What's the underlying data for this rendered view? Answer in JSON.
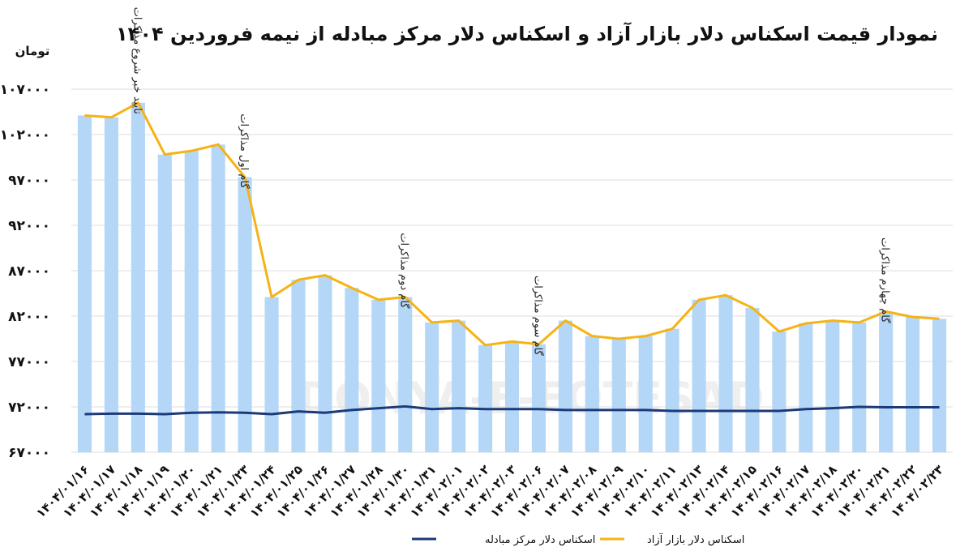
{
  "chart_data": {
    "type": "bar+line",
    "title": "نمودار قیمت اسکناس دلار بازار آزاد و اسکناس دلار مرکز مبادله از نیمه فروردین ۱۴۰۴",
    "unit_label": "تومان",
    "ylim": [
      67000,
      107000
    ],
    "yticks": [
      "۶۷۰۰۰",
      "۷۲۰۰۰",
      "۷۷۰۰۰",
      "۸۲۰۰۰",
      "۸۷۰۰۰",
      "۹۲۰۰۰",
      "۹۷۰۰۰",
      "۱۰۲۰۰۰",
      "۱۰۷۰۰۰"
    ],
    "categories": [
      "۱۴۰۴/۰۱/۱۶",
      "۱۴۰۴/۰۱/۱۷",
      "۱۴۰۴/۰۱/۱۸",
      "۱۴۰۴/۰۱/۱۹",
      "۱۴۰۴/۰۱/۲۰",
      "۱۴۰۴/۰۱/۲۱",
      "۱۴۰۴/۰۱/۲۳",
      "۱۴۰۴/۰۱/۲۴",
      "۱۴۰۴/۰۱/۲۵",
      "۱۴۰۴/۰۱/۲۶",
      "۱۴۰۴/۰۱/۲۷",
      "۱۴۰۴/۰۱/۲۸",
      "۱۴۰۴/۰۱/۳۰",
      "۱۴۰۴/۰۱/۳۱",
      "۱۴۰۴/۰۲/۰۱",
      "۱۴۰۴/۰۲/۰۲",
      "۱۴۰۴/۰۲/۰۳",
      "۱۴۰۴/۰۲/۰۶",
      "۱۴۰۴/۰۲/۰۷",
      "۱۴۰۴/۰۲/۰۸",
      "۱۴۰۴/۰۲/۰۹",
      "۱۴۰۴/۰۲/۱۰",
      "۱۴۰۴/۰۲/۱۱",
      "۱۴۰۴/۰۲/۱۳",
      "۱۴۰۴/۰۲/۱۴",
      "۱۴۰۴/۰۲/۱۵",
      "۱۴۰۴/۰۲/۱۶",
      "۱۴۰۴/۰۲/۱۷",
      "۱۴۰۴/۰۲/۱۸",
      "۱۴۰۴/۰۲/۲۰",
      "۱۴۰۴/۰۲/۲۱",
      "۱۴۰۴/۰۲/۲۲",
      "۱۴۰۴/۰۲/۲۳"
    ],
    "bars": {
      "values": [
        104100,
        103900,
        105500,
        99800,
        100200,
        100900,
        97300,
        84100,
        86000,
        86500,
        85100,
        83800,
        84100,
        81300,
        81500,
        78800,
        79200,
        78900,
        81500,
        79800,
        79500,
        79800,
        80600,
        83800,
        84300,
        82900,
        80300,
        81200,
        81500,
        81300,
        82500,
        81900,
        81700
      ],
      "color": "#b5d7f7"
    },
    "series": [
      {
        "name": "اسکناس دلار بازار آزاد",
        "color": "#f5b315",
        "values": [
          104100,
          103900,
          105500,
          99800,
          100200,
          100900,
          97300,
          84100,
          86000,
          86500,
          85100,
          83800,
          84100,
          81300,
          81500,
          78800,
          79200,
          78900,
          81500,
          79800,
          79500,
          79800,
          80600,
          83800,
          84300,
          82900,
          80300,
          81200,
          81500,
          81300,
          82500,
          81900,
          81700
        ]
      },
      {
        "name": "اسکناس دلار مرکز مبادله",
        "color": "#1c3a78",
        "values": [
          71200,
          71250,
          71250,
          71200,
          71350,
          71400,
          71350,
          71200,
          71500,
          71350,
          71650,
          71850,
          72050,
          71750,
          71850,
          71750,
          71750,
          71750,
          71650,
          71650,
          71650,
          71650,
          71550,
          71550,
          71550,
          71550,
          71550,
          71750,
          71850,
          72000,
          71950,
          71950,
          71950
        ]
      }
    ],
    "annotations": [
      {
        "text": "تایید خبر شروع مذاکرات",
        "index": 2
      },
      {
        "text": "گام اول مذاکرات",
        "index": 6
      },
      {
        "text": "گام دوم مذاکرات",
        "index": 12
      },
      {
        "text": "گام سوم مذاکرات",
        "index": 17
      },
      {
        "text": "گام چهارم مذاکرات",
        "index": 30
      }
    ],
    "legend_position": "bottom",
    "watermark": "DONYA-E-EQTESAD",
    "grid": true
  }
}
